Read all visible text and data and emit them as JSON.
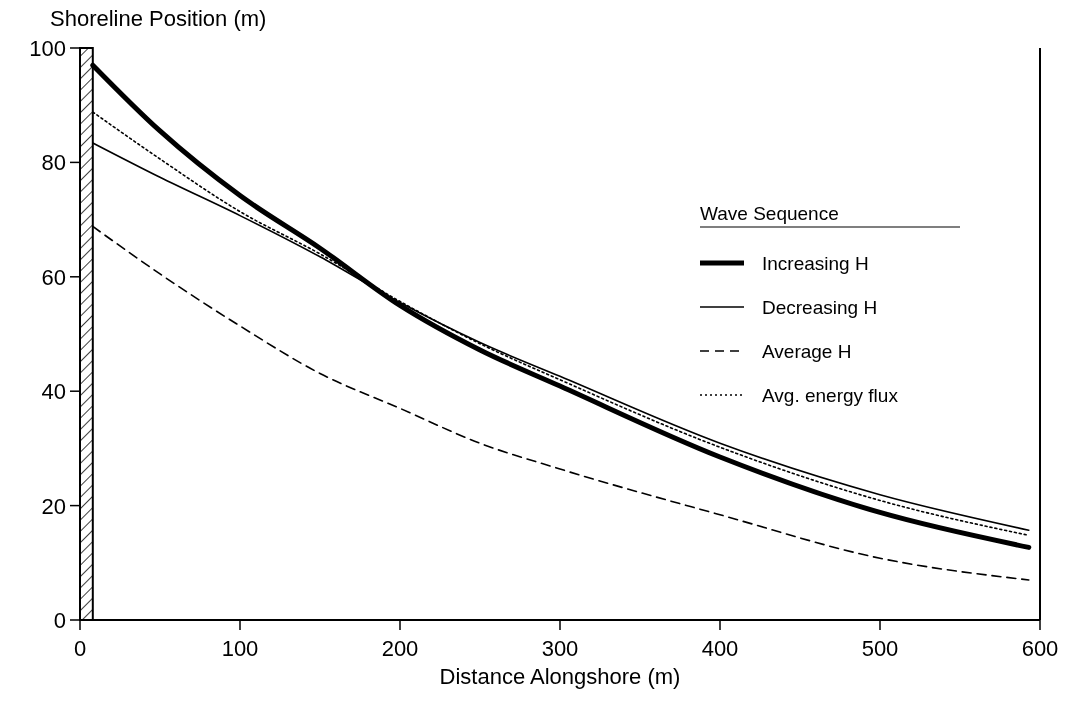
{
  "chart_data": {
    "type": "line",
    "ylabel": "Shoreline Position (m)",
    "xlabel": "Distance Alongshore (m)",
    "legend_title": "Wave Sequence",
    "legend": "right",
    "xlim": [
      0,
      600
    ],
    "ylim": [
      0,
      100
    ],
    "xticks": [
      0,
      100,
      200,
      300,
      400,
      500,
      600
    ],
    "yticks": [
      0,
      20,
      40,
      60,
      80,
      100
    ],
    "grid": false,
    "bands": [
      {
        "axis": "x",
        "from": 0,
        "to": 8,
        "color": "#000000"
      }
    ],
    "x": [
      8,
      50,
      100,
      150,
      200,
      250,
      300,
      400,
      500,
      593
    ],
    "series": [
      {
        "name": "Increasing H",
        "color": "#000000",
        "line_style": "solid",
        "values": [
          97,
          85.5,
          74.2,
          65,
          55,
          47.2,
          40.9,
          28.5,
          18.8,
          12.7
        ]
      },
      {
        "name": "Decreasing H",
        "color": "#000000",
        "line_style": "solid",
        "values": [
          83.4,
          77.4,
          70.7,
          63.5,
          55.5,
          48.5,
          42.6,
          30.9,
          21.9,
          15.7
        ]
      },
      {
        "name": "Average H",
        "color": "#000000",
        "line_style": "dashed",
        "values": [
          68.8,
          60.5,
          51.4,
          43.1,
          37,
          30.9,
          26.4,
          18.4,
          10.8,
          7.0
        ]
      },
      {
        "name": "Avg. energy flux",
        "color": "#000000",
        "line_style": "dotted",
        "values": [
          88.8,
          80.6,
          71.4,
          64,
          55.7,
          48.3,
          42,
          30.2,
          20.9,
          14.8
        ]
      }
    ]
  }
}
